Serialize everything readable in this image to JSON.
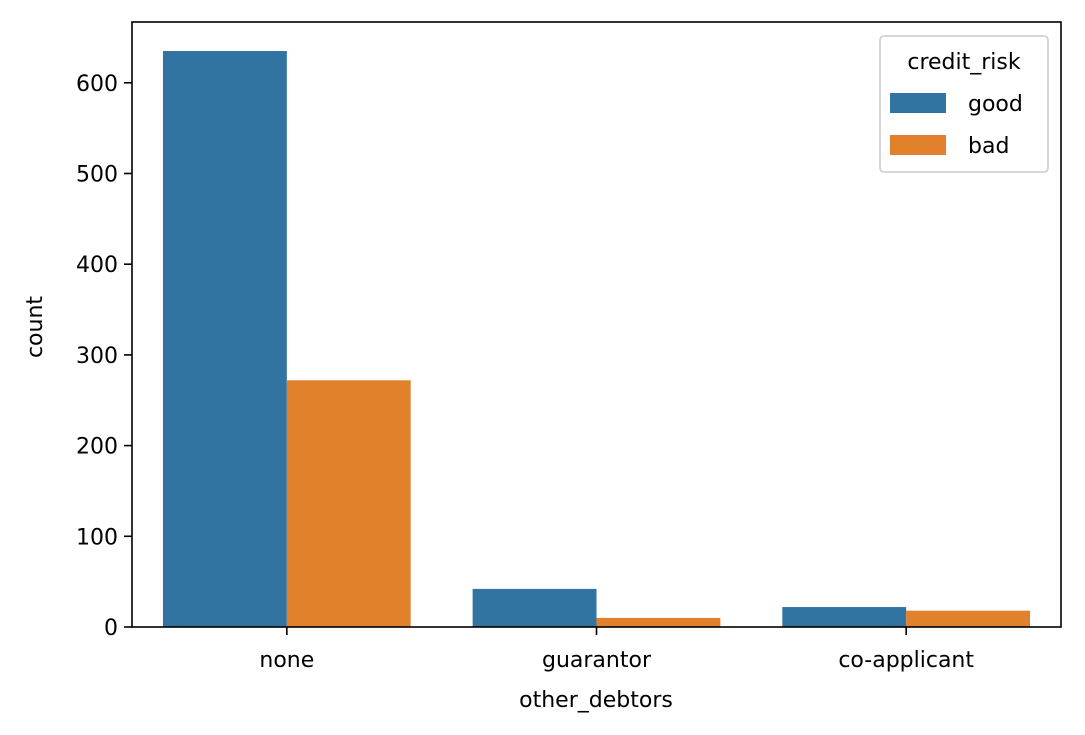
{
  "chart_data": {
    "type": "bar",
    "title": "",
    "xlabel": "other_debtors",
    "ylabel": "count",
    "categories": [
      "none",
      "guarantor",
      "co-applicant"
    ],
    "series": [
      {
        "name": "good",
        "values": [
          635,
          42,
          22
        ],
        "color": "#3274a1"
      },
      {
        "name": "bad",
        "values": [
          272,
          10,
          18
        ],
        "color": "#e1812c"
      }
    ],
    "ylim": [
      0,
      667
    ],
    "yticks": [
      0,
      100,
      200,
      300,
      400,
      500,
      600
    ],
    "grid": false,
    "legend": {
      "title": "credit_risk",
      "placement": "top-right"
    }
  }
}
